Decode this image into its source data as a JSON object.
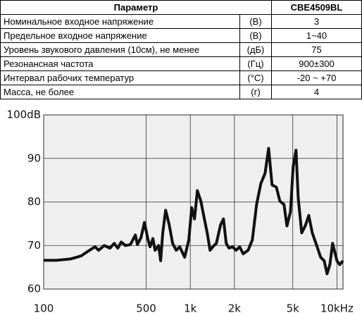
{
  "table": {
    "header": [
      "Параметр",
      "CBE4509BL"
    ],
    "rows": [
      [
        "Номинальное входное напряжение",
        "(В)",
        "3"
      ],
      [
        "Предельное входное напряжение",
        "(В)",
        "1~40"
      ],
      [
        "Уровень звукового давления (10см), не менее",
        "(дБ)",
        "75"
      ],
      [
        "Резонансная частота",
        "(Гц)",
        "900±300"
      ],
      [
        "Интервал рабочих температур",
        "(°C)",
        "-20 ~ +70"
      ],
      [
        "Масса, не более",
        "(г)",
        "4"
      ]
    ]
  },
  "chart_data": {
    "type": "line",
    "log_x": true,
    "grid": true,
    "color": "#111111",
    "x": [
      100,
      122,
      152,
      180,
      201,
      224,
      237,
      259,
      283,
      303,
      320,
      338,
      361,
      390,
      422,
      436,
      461,
      487,
      515,
      532,
      556,
      575,
      608,
      628,
      649,
      679,
      718,
      758,
      801,
      847,
      915,
      977,
      1023,
      1069,
      1117,
      1181,
      1248,
      1304,
      1364,
      1425,
      1506,
      1610,
      1683,
      1758,
      1837,
      1941,
      2053,
      2171,
      2294,
      2479,
      2650,
      2831,
      3027,
      3236,
      3420,
      3612,
      3862,
      4083,
      4359,
      4560,
      4818,
      5035,
      5263,
      5445,
      5754,
      6081,
      6427,
      6792,
      7328,
      7744,
      8185,
      8570,
      8954,
      9354,
      10000,
      10450,
      11000
    ],
    "values": [
      66.6,
      66.6,
      66.9,
      67.6,
      68.7,
      69.7,
      68.9,
      70.0,
      69.4,
      70.5,
      69.4,
      70.8,
      70.0,
      70.2,
      72.4,
      70.2,
      71.8,
      75.3,
      71.3,
      69.7,
      71.6,
      68.9,
      70.0,
      66.5,
      72.9,
      78.1,
      74.8,
      70.5,
      68.9,
      69.7,
      67.3,
      71.3,
      78.7,
      76.1,
      82.6,
      80.2,
      76.1,
      72.9,
      68.9,
      69.7,
      70.5,
      74.8,
      76.1,
      70.5,
      69.4,
      69.7,
      68.9,
      69.7,
      68.1,
      68.9,
      71.3,
      79.4,
      84.2,
      86.6,
      92.3,
      83.9,
      83.4,
      80.2,
      79.4,
      74.5,
      77.7,
      88.2,
      91.9,
      81.0,
      72.9,
      74.5,
      76.9,
      72.9,
      69.7,
      67.3,
      66.5,
      63.5,
      65.6,
      70.5,
      66.5,
      65.6,
      66.5
    ],
    "xlim": [
      100,
      11000
    ],
    "xticks": [
      100,
      500,
      {
        "value": 1000,
        "label": "1k"
      },
      {
        "value": 2000,
        "label": "2k"
      },
      {
        "value": 5000,
        "label": "5k"
      },
      {
        "value": 10000,
        "label": "10kHz"
      }
    ],
    "ylim": [
      60,
      100
    ],
    "yticks": [
      60,
      70,
      80,
      90,
      {
        "value": 100,
        "label": "100dB"
      }
    ]
  }
}
